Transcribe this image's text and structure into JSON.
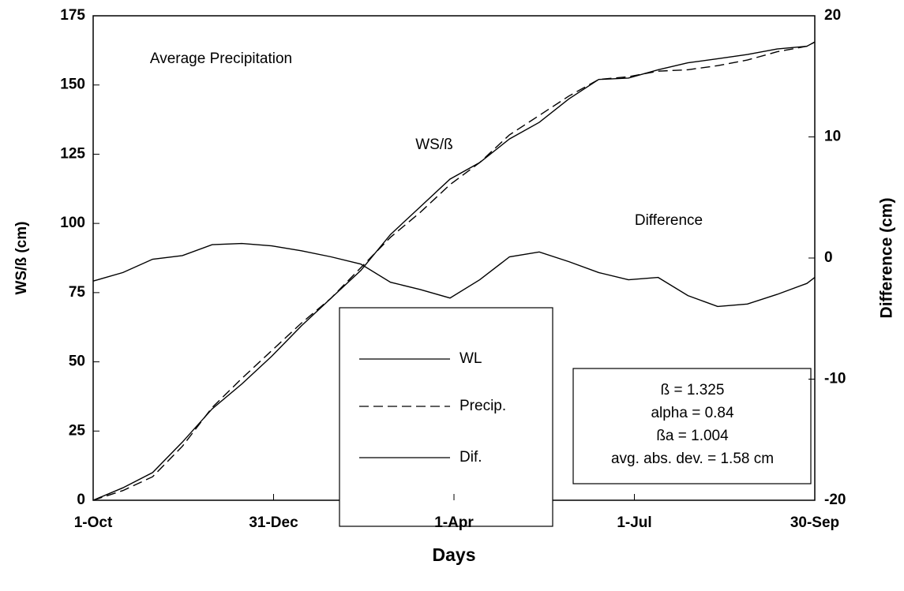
{
  "chart_data": {
    "type": "line",
    "x_label": "Days",
    "y_label": "WS/ß (cm)",
    "y2_label": "Difference (cm)",
    "annotations": [
      "Average Precipitation",
      "WS/ß",
      "Difference"
    ],
    "stats_box": [
      "ß = 1.325",
      "alpha = 0.84",
      "ßa = 1.004",
      "avg. abs. dev. = 1.58 cm"
    ],
    "x": [
      0,
      15,
      30,
      45,
      60,
      75,
      90,
      105,
      120,
      135,
      150,
      165,
      180,
      195,
      210,
      225,
      240,
      255,
      270,
      285,
      300,
      315,
      330,
      345,
      360,
      364
    ],
    "xlim": [
      0,
      364
    ],
    "xticks": [
      {
        "value": 0,
        "label": "1-Oct"
      },
      {
        "value": 91,
        "label": "31-Dec"
      },
      {
        "value": 182,
        "label": "1-Apr"
      },
      {
        "value": 273,
        "label": "1-Jul"
      },
      {
        "value": 364,
        "label": "30-Sep"
      }
    ],
    "ylim": [
      0,
      175
    ],
    "yticks": [
      0,
      25,
      50,
      75,
      100,
      125,
      150,
      175
    ],
    "y2lim": [
      -20,
      20
    ],
    "y2ticks": [
      -20,
      -10,
      0,
      10,
      20
    ],
    "series": [
      {
        "name": "WL",
        "color": "#000000",
        "style": "solid",
        "values": [
          0,
          4.5,
          10,
          21,
          33,
          42,
          52,
          63,
          73,
          83,
          96,
          106,
          116,
          122,
          130.5,
          136.5,
          145,
          152,
          152.5,
          155.5,
          158,
          159.5,
          161,
          163,
          164,
          165.5
        ]
      },
      {
        "name": "Precip.",
        "color": "#000000",
        "style": "dashed",
        "values": [
          0,
          3.5,
          8.5,
          19.5,
          33.5,
          44,
          54,
          64,
          73,
          84,
          95,
          104,
          114,
          122,
          132,
          139,
          146,
          152,
          153,
          155,
          155.5,
          157,
          159,
          162,
          164,
          165.5
        ]
      },
      {
        "name": "Dif.",
        "color": "#000000",
        "style": "solid",
        "axis": "y2",
        "values": [
          -1.9,
          -1.2,
          -0.1,
          0.2,
          1.1,
          1.2,
          1.0,
          0.6,
          0.1,
          -0.5,
          -2.0,
          -2.6,
          -3.3,
          -1.8,
          0.1,
          0.5,
          -0.3,
          -1.2,
          -1.8,
          -1.6,
          -3.1,
          -4.0,
          -3.8,
          -3.0,
          -2.1,
          -1.6
        ]
      }
    ]
  }
}
